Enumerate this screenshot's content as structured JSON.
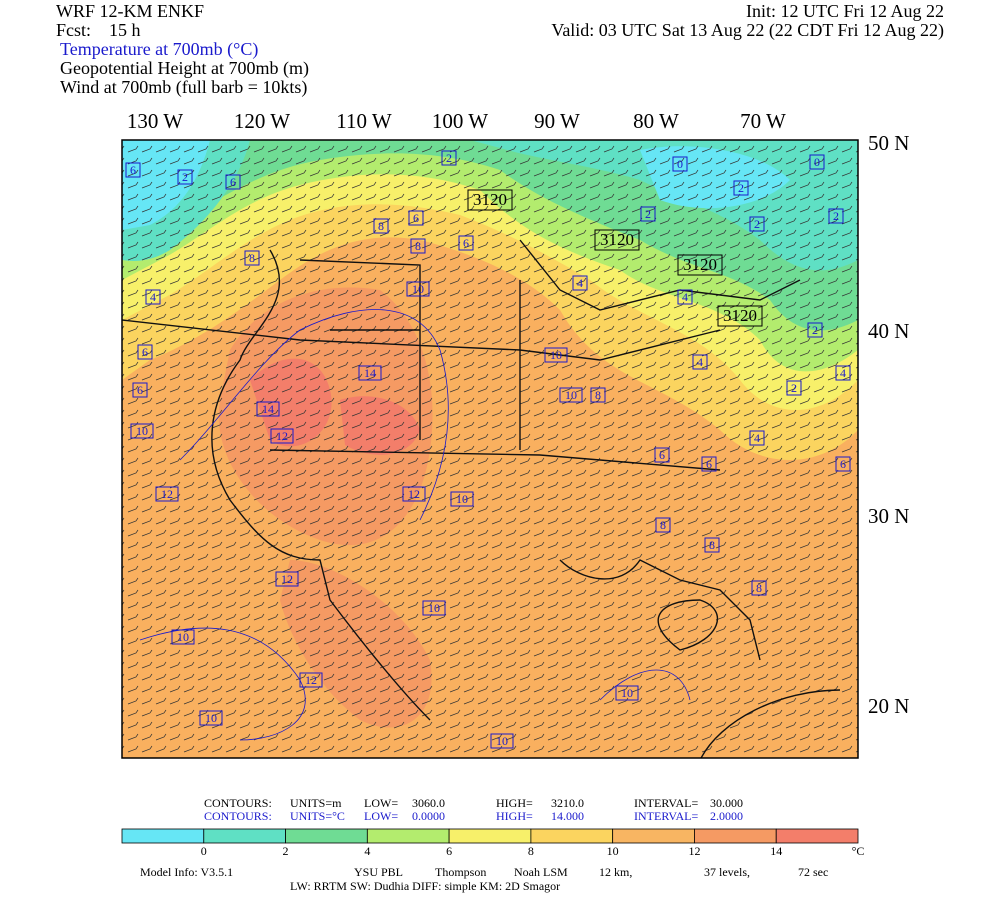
{
  "header": {
    "model": "WRF 12-KM ENKF",
    "forecast": "Fcst:    15 h",
    "init": "Init: 12 UTC Fri 12 Aug 22",
    "valid": "Valid: 03 UTC Sat 13 Aug 22 (22 CDT Fri 12 Aug 22)",
    "fields": [
      "Temperature at 700mb (°C)",
      "Geopotential Height at 700mb (m)",
      "Wind at 700mb (full barb = 10kts)"
    ]
  },
  "map": {
    "longitude_labels": [
      "130 W",
      "120 W",
      "110 W",
      "100 W",
      "90 W",
      "80 W",
      "70 W"
    ],
    "latitude_labels": [
      "50 N",
      "40 N",
      "30 N",
      "20 N"
    ],
    "contour_labels": [
      "6",
      "2",
      "6",
      "2",
      "3120",
      "0",
      "0",
      "2",
      "2",
      "2",
      "2",
      "8",
      "6",
      "6",
      "8",
      "8",
      "4",
      "10",
      "3120",
      "3120",
      "4",
      "4",
      "3120",
      "2",
      "6",
      "14",
      "10",
      "4",
      "6",
      "14",
      "10",
      "8",
      "2",
      "4",
      "12",
      "10",
      "4",
      "6",
      "6",
      "6",
      "12",
      "12",
      "10",
      "8",
      "8",
      "12",
      "10",
      "8",
      "10",
      "12",
      "10",
      "10",
      "10"
    ]
  },
  "contour_info": [
    [
      "CONTOURS:",
      "UNITS=m",
      "LOW=",
      "3060.0",
      "HIGH=",
      "3210.0",
      "INTERVAL=",
      "30.000"
    ],
    [
      "CONTOURS:",
      "UNITS=°C",
      "LOW=",
      "0.0000",
      "HIGH=",
      "14.000",
      "INTERVAL=",
      "2.0000"
    ]
  ],
  "colorbar": {
    "colors": [
      "#66e6f5",
      "#5fe0c4",
      "#6fdc94",
      "#b3ec6e",
      "#f7f06a",
      "#fbd45f",
      "#f8b562",
      "#f59a63",
      "#f37e6a"
    ],
    "labels": [
      "0",
      "2",
      "4",
      "6",
      "8",
      "10",
      "12",
      "14"
    ],
    "unit": "°C"
  },
  "footer": {
    "model_info": [
      "Model Info: V3.5.1",
      "YSU PBL",
      "Thompson",
      "Noah LSM",
      "12 km,",
      "37 levels,",
      "72 sec"
    ],
    "physics": "LW: RRTM  SW: Dudhia  DIFF: simple  KM: 2D Smagor"
  }
}
